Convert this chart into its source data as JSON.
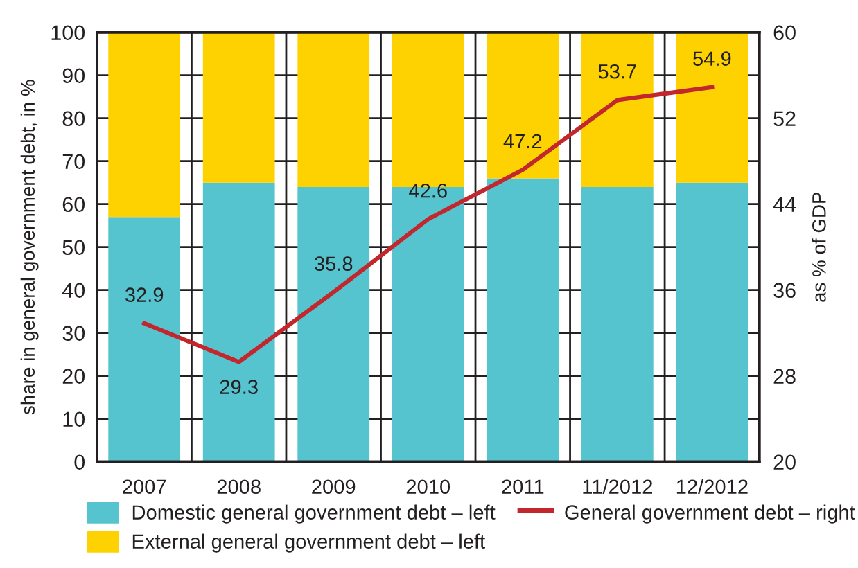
{
  "chart_data": {
    "type": "bar",
    "stacked": true,
    "categories": [
      "2007",
      "2008",
      "2009",
      "2010",
      "2011",
      "11/2012",
      "12/2012"
    ],
    "ylabel": "share in general government debt, in %",
    "y2label": "as % of GDP",
    "ylim": [
      0,
      100
    ],
    "yticks": [
      0,
      10,
      20,
      30,
      40,
      50,
      60,
      70,
      80,
      90,
      100
    ],
    "y2lim": [
      20,
      60
    ],
    "y2ticks": [
      20,
      28,
      36,
      44,
      52,
      60
    ],
    "grid": true,
    "legend": "bottom",
    "series": [
      {
        "name": "Domestic general government debt – left",
        "color": "#56c4cf",
        "values": [
          57,
          65,
          64,
          64,
          66,
          64,
          65
        ]
      },
      {
        "name": "External general government debt – left",
        "color": "#fdd200",
        "values": [
          43,
          35,
          36,
          36,
          34,
          36,
          35
        ]
      },
      {
        "name": "General government debt – right",
        "type": "line",
        "axis": "y2",
        "color": "#c1272d",
        "values": [
          32.9,
          29.3,
          35.8,
          42.6,
          47.2,
          53.7,
          54.9
        ],
        "value_labels": [
          "32.9",
          "29.3",
          "35.8",
          "42.6",
          "47.2",
          "53.7",
          "54.9"
        ]
      }
    ]
  }
}
